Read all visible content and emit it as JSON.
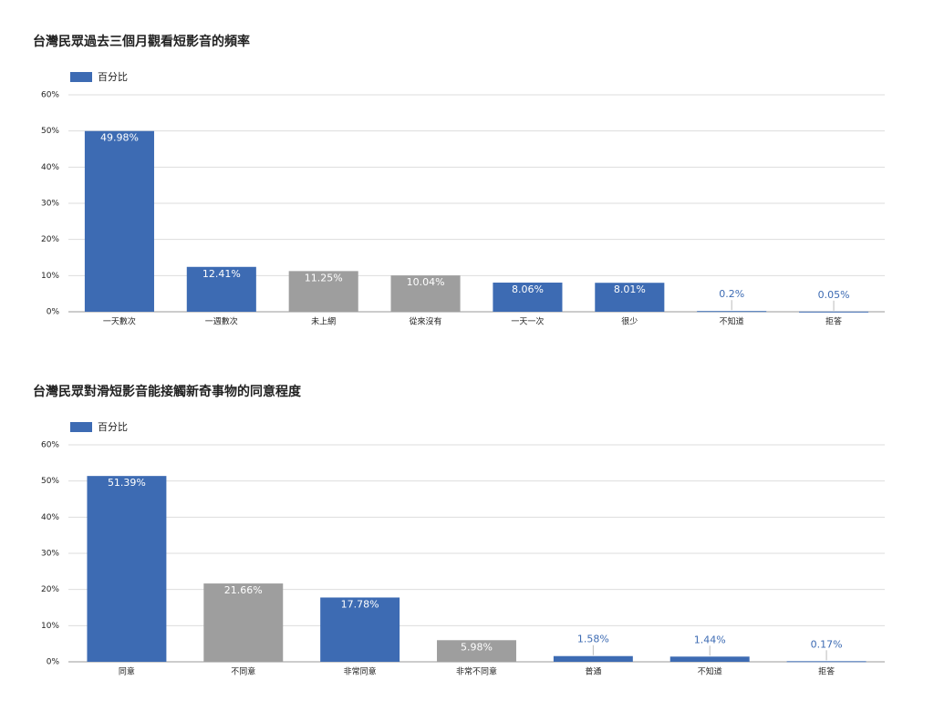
{
  "chart_data": [
    {
      "type": "bar",
      "title": "台灣民眾過去三個月觀看短影音的頻率",
      "categories": [
        "一天數次",
        "一週數次",
        "未上網",
        "從來沒有",
        "一天一次",
        "很少",
        "不知道",
        "拒答"
      ],
      "series": [
        {
          "name": "百分比",
          "color": "#3d6bb3",
          "colors": [
            "#3d6bb3",
            "#3d6bb3",
            "#9e9e9e",
            "#9e9e9e",
            "#3d6bb3",
            "#3d6bb3",
            "#3d6bb3",
            "#3d6bb3"
          ],
          "values": [
            49.98,
            12.41,
            11.25,
            10.04,
            8.06,
            8.01,
            0.2,
            0.05
          ],
          "value_labels": [
            "49.98%",
            "12.41%",
            "11.25%",
            "10.04%",
            "8.06%",
            "8.01%",
            "0.2%",
            "0.05%"
          ]
        }
      ],
      "ylim": [
        0,
        60
      ],
      "yticks": [
        {
          "value": 0,
          "label": "0%"
        },
        {
          "value": 10,
          "label": "10%"
        },
        {
          "value": 20,
          "label": "20%"
        },
        {
          "value": 30,
          "label": "30%"
        },
        {
          "value": 40,
          "label": "40%"
        },
        {
          "value": 50,
          "label": "50%"
        },
        {
          "value": 60,
          "label": "60%"
        }
      ],
      "grid": true
    },
    {
      "type": "bar",
      "title": "台灣民眾對滑短影音能接觸新奇事物的同意程度",
      "categories": [
        "同意",
        "不同意",
        "非常同意",
        "非常不同意",
        "普通",
        "不知道",
        "拒答"
      ],
      "series": [
        {
          "name": "百分比",
          "color": "#3d6bb3",
          "colors": [
            "#3d6bb3",
            "#9e9e9e",
            "#3d6bb3",
            "#9e9e9e",
            "#3d6bb3",
            "#3d6bb3",
            "#3d6bb3"
          ],
          "values": [
            51.39,
            21.66,
            17.78,
            5.98,
            1.58,
            1.44,
            0.17
          ],
          "value_labels": [
            "51.39%",
            "21.66%",
            "17.78%",
            "5.98%",
            "1.58%",
            "1.44%",
            "0.17%"
          ]
        }
      ],
      "ylim": [
        0,
        60
      ],
      "yticks": [
        {
          "value": 0,
          "label": "0%"
        },
        {
          "value": 10,
          "label": "10%"
        },
        {
          "value": 20,
          "label": "20%"
        },
        {
          "value": 30,
          "label": "30%"
        },
        {
          "value": 40,
          "label": "40%"
        },
        {
          "value": 50,
          "label": "50%"
        },
        {
          "value": 60,
          "label": "60%"
        }
      ],
      "grid": true
    }
  ]
}
